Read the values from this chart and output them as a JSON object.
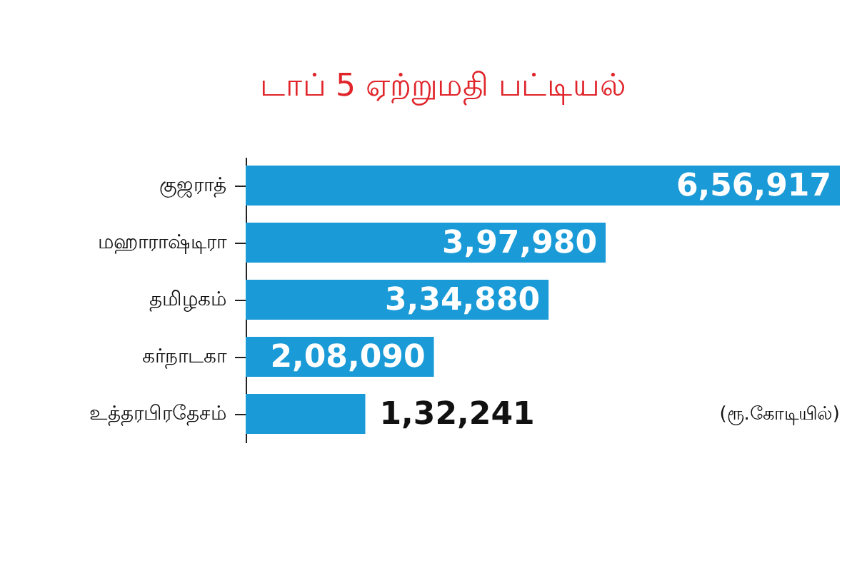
{
  "chart_data": {
    "type": "bar",
    "orientation": "horizontal",
    "title": "டாப் 5 ஏற்றுமதி பட்டியல்",
    "categories": [
      "குஜராத்",
      "மஹாராஷ்டிரா",
      "தமிழகம்",
      "கர்நாடகா",
      "உத்தரபிரதேசம்"
    ],
    "values": [
      656917,
      397980,
      334880,
      208090,
      132241
    ],
    "value_labels": [
      "6,56,917",
      "3,97,980",
      "3,34,880",
      "2,08,090",
      "1,32,241"
    ],
    "color": "#1a9ad6",
    "annotations": [
      "(ரூ.கோடியில்)"
    ]
  }
}
